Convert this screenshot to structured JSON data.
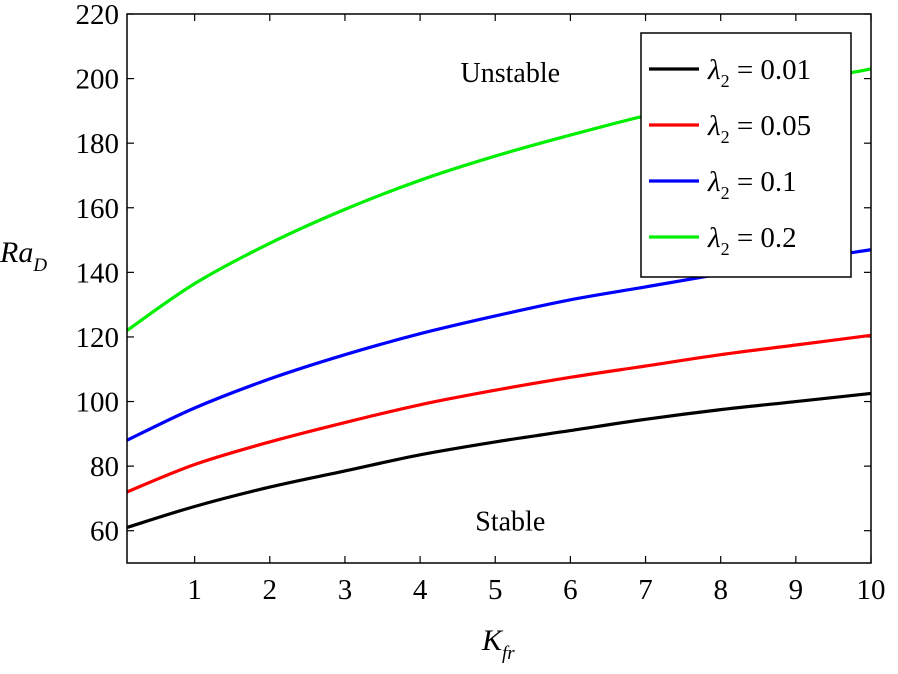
{
  "chart_data": {
    "type": "line",
    "title": "",
    "xlabel": {
      "main": "K",
      "sub": "fr"
    },
    "ylabel": {
      "main": "Ra",
      "sub": "D"
    },
    "xlim": [
      0.1,
      10
    ],
    "ylim": [
      50,
      220
    ],
    "xticks": [
      1,
      2,
      3,
      4,
      5,
      6,
      7,
      8,
      9,
      10
    ],
    "yticks": [
      60,
      80,
      100,
      120,
      140,
      160,
      180,
      200,
      220
    ],
    "grid": false,
    "legend_position": "top-right",
    "x": [
      0.1,
      1,
      2,
      3,
      4,
      5,
      6,
      7,
      8,
      9,
      10
    ],
    "series": [
      {
        "name": "λ₂ = 0.01",
        "legend": {
          "symbol": "λ",
          "sub": "2",
          "rest": " = 0.01"
        },
        "color": "#000000",
        "values": [
          61,
          67.5,
          73.5,
          78.5,
          83.5,
          87.5,
          91,
          94.5,
          97.5,
          100,
          102.5
        ]
      },
      {
        "name": "λ₂ = 0.05",
        "legend": {
          "symbol": "λ",
          "sub": "2",
          "rest": " = 0.05"
        },
        "color": "#ff0000",
        "values": [
          72,
          80.5,
          87.5,
          93.5,
          99,
          103.5,
          107.5,
          111,
          114.5,
          117.5,
          120.5
        ]
      },
      {
        "name": "λ₂ = 0.1",
        "legend": {
          "symbol": "λ",
          "sub": "2",
          "rest": " = 0.1"
        },
        "color": "#0000ff",
        "values": [
          88,
          98,
          107,
          114.5,
          121,
          126.5,
          131.5,
          135.5,
          139.5,
          143.5,
          147
        ]
      },
      {
        "name": "λ₂ = 0.2",
        "legend": {
          "symbol": "λ",
          "sub": "2",
          "rest": " = 0.2"
        },
        "color": "#00ee00",
        "values": [
          122,
          136.5,
          149,
          159.5,
          168.5,
          176,
          182.5,
          188.5,
          193.5,
          198.5,
          203
        ]
      }
    ],
    "annotations": [
      {
        "text": "Unstable",
        "x": 5.2,
        "y": 199
      },
      {
        "text": "Stable",
        "x": 5.2,
        "y": 60
      }
    ]
  }
}
